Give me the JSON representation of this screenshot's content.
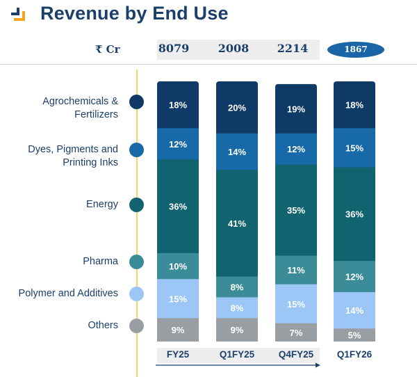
{
  "title": "Revenue by End Use",
  "logo_icon": "brand-chevron-icon",
  "header": {
    "unit": "₹ Cr",
    "values": [
      "8079",
      "2008",
      "2214",
      "1867"
    ],
    "highlighted_index": 3
  },
  "colors": {
    "title": "#1b3f6b",
    "timeline": "#f5d36a",
    "highlight_pill": "#1a64a8",
    "band": "#eeeeee"
  },
  "chart_data": {
    "type": "bar",
    "stacked": true,
    "percent": true,
    "title": "Revenue by End Use",
    "unit": "₹ Cr",
    "categories": [
      "FY25",
      "Q1FY25",
      "Q4FY25",
      "Q1FY26"
    ],
    "totals": [
      8079,
      2008,
      2214,
      1867
    ],
    "series": [
      {
        "name": "Agrochemicals & Fertilizers",
        "color": "#0f3a66",
        "values": [
          18,
          20,
          19,
          18
        ]
      },
      {
        "name": "Dyes, Pigments and Printing Inks",
        "color": "#1769a8",
        "values": [
          12,
          14,
          12,
          15
        ]
      },
      {
        "name": "Energy",
        "color": "#10636f",
        "values": [
          36,
          41,
          35,
          36
        ]
      },
      {
        "name": "Pharma",
        "color": "#3b8c98",
        "values": [
          10,
          8,
          11,
          12
        ]
      },
      {
        "name": "Polymer and Additives",
        "color": "#9bc6f5",
        "values": [
          15,
          8,
          15,
          14
        ]
      },
      {
        "name": "Others",
        "color": "#999ea3",
        "values": [
          9,
          9,
          7,
          5
        ]
      }
    ],
    "legend": {
      "labels": [
        [
          "Agrochemicals &",
          "Fertilizers"
        ],
        [
          "Dyes, Pigments and",
          "Printing Inks"
        ],
        [
          "Energy"
        ],
        [
          "Pharma"
        ],
        [
          "Polymer and Additives"
        ],
        [
          "Others"
        ]
      ],
      "placement": "left"
    },
    "xlabel": "",
    "ylabel": "",
    "ylim": [
      0,
      100
    ],
    "grid": false,
    "data_labels": true,
    "timeline_arrow": "FY25 → Q4FY25"
  }
}
